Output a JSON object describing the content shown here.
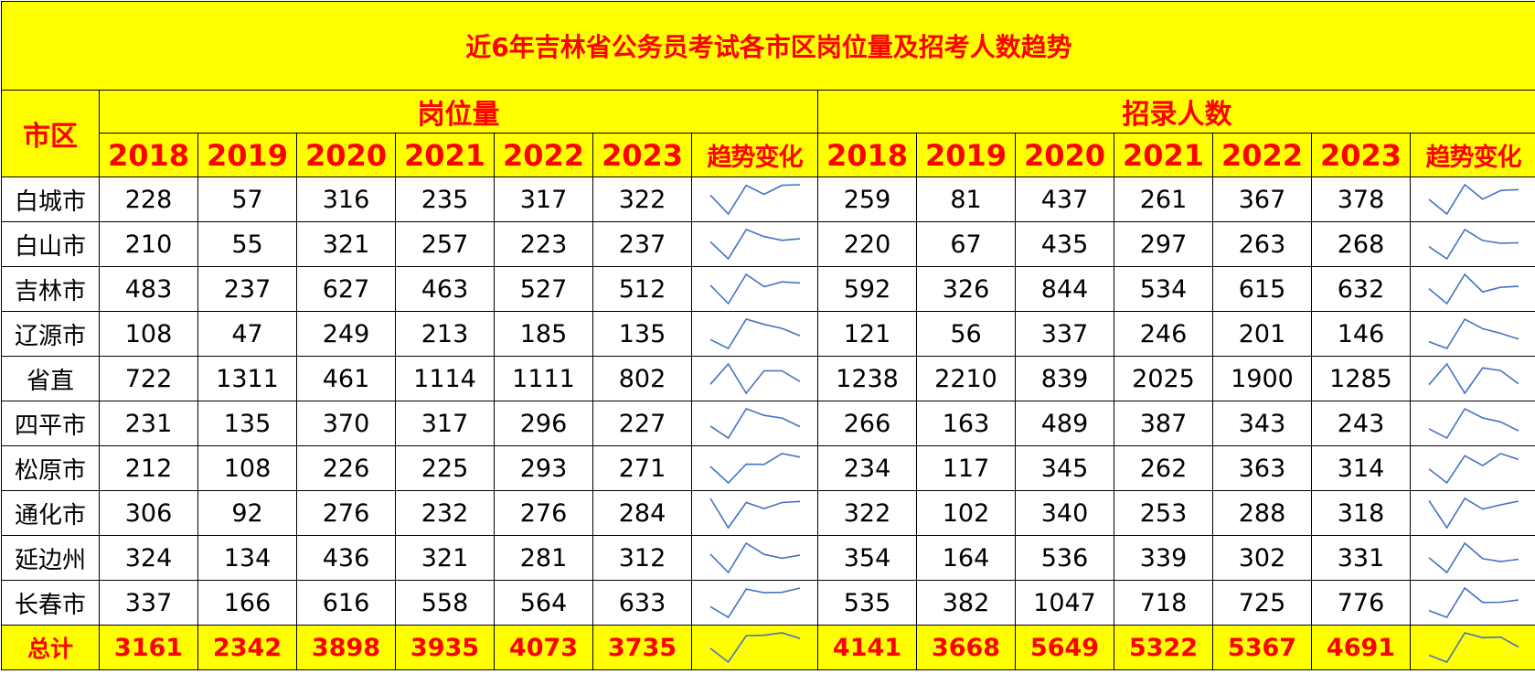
{
  "title": "近6年吉林省公务员考试各市区岗位量及招考人数趋势",
  "header": {
    "city_label": "市区",
    "group_positions": "岗位量",
    "group_recruits": "招录人数",
    "years": [
      "2018",
      "2019",
      "2020",
      "2021",
      "2022",
      "2023"
    ],
    "trend_label": "趋势变化"
  },
  "rows": [
    {
      "city": "白城市",
      "positions": [
        228,
        57,
        316,
        235,
        317,
        322
      ],
      "recruits": [
        259,
        81,
        437,
        261,
        367,
        378
      ]
    },
    {
      "city": "白山市",
      "positions": [
        210,
        55,
        321,
        257,
        223,
        237
      ],
      "recruits": [
        220,
        67,
        435,
        297,
        263,
        268
      ]
    },
    {
      "city": "吉林市",
      "positions": [
        483,
        237,
        627,
        463,
        527,
        512
      ],
      "recruits": [
        592,
        326,
        844,
        534,
        615,
        632
      ]
    },
    {
      "city": "辽源市",
      "positions": [
        108,
        47,
        249,
        213,
        185,
        135
      ],
      "recruits": [
        121,
        56,
        337,
        246,
        201,
        146
      ]
    },
    {
      "city": "省直",
      "positions": [
        722,
        1311,
        461,
        1114,
        1111,
        802
      ],
      "recruits": [
        1238,
        2210,
        839,
        2025,
        1900,
        1285
      ]
    },
    {
      "city": "四平市",
      "positions": [
        231,
        135,
        370,
        317,
        296,
        227
      ],
      "recruits": [
        266,
        163,
        489,
        387,
        343,
        243
      ]
    },
    {
      "city": "松原市",
      "positions": [
        212,
        108,
        226,
        225,
        293,
        271
      ],
      "recruits": [
        234,
        117,
        345,
        262,
        363,
        314
      ]
    },
    {
      "city": "通化市",
      "positions": [
        306,
        92,
        276,
        232,
        276,
        284
      ],
      "recruits": [
        322,
        102,
        340,
        253,
        288,
        318
      ]
    },
    {
      "city": "延边州",
      "positions": [
        324,
        134,
        436,
        321,
        281,
        312
      ],
      "recruits": [
        354,
        164,
        536,
        339,
        302,
        331
      ]
    },
    {
      "city": "长春市",
      "positions": [
        337,
        166,
        616,
        558,
        564,
        633
      ],
      "recruits": [
        535,
        382,
        1047,
        718,
        725,
        776
      ]
    }
  ],
  "total": {
    "city": "总计",
    "positions": [
      3161,
      2342,
      3898,
      3935,
      4073,
      3735
    ],
    "recruits": [
      4141,
      3668,
      5649,
      5322,
      5367,
      4691
    ]
  },
  "colors": {
    "header_bg": "#ffff00",
    "header_text": "#ff0000",
    "sparkline": "#4472c4",
    "border": "#000000"
  }
}
